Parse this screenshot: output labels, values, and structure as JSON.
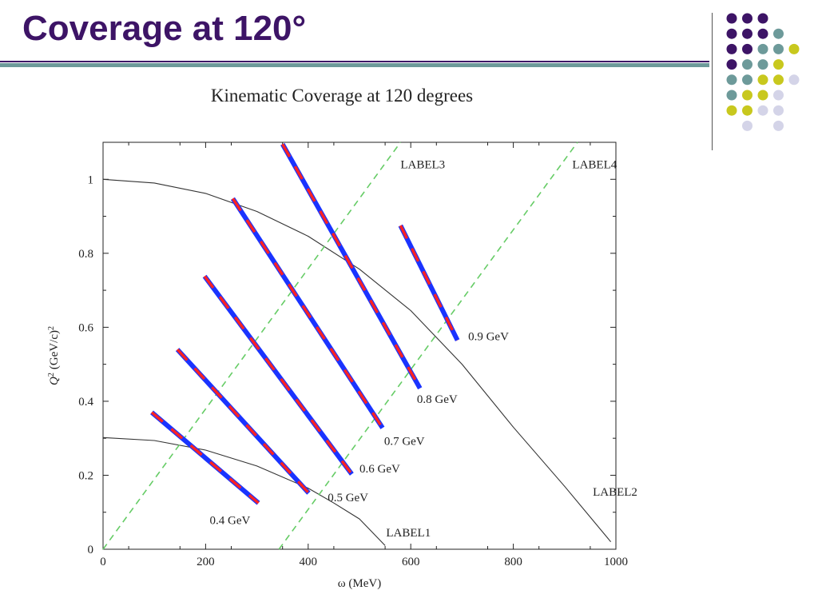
{
  "slide": {
    "title": "Coverage at 120°"
  },
  "decor": {
    "dot_colors": {
      "purple": "#3d1466",
      "teal": "#6d9a9a",
      "yellow": "#c8c81e",
      "lavender": "#d4d4e8"
    },
    "dot_grid": [
      [
        "purple",
        "purple",
        "purple",
        null,
        null
      ],
      [
        "purple",
        "purple",
        "purple",
        "teal",
        null
      ],
      [
        "purple",
        "purple",
        "teal",
        "teal",
        "yellow"
      ],
      [
        "purple",
        "teal",
        "teal",
        "yellow",
        null
      ],
      [
        "teal",
        "teal",
        "yellow",
        "yellow",
        "lavender"
      ],
      [
        "teal",
        "yellow",
        "yellow",
        "lavender",
        null
      ],
      [
        "yellow",
        "yellow",
        "lavender",
        "lavender",
        null
      ],
      [
        null,
        "lavender",
        null,
        "lavender",
        null
      ]
    ],
    "rule_colors": {
      "dark": "#3d1466",
      "bar": "#6d9a9a"
    }
  },
  "chart_data": {
    "type": "line",
    "title": "Kinematic Coverage at 120 degrees",
    "xlabel": "ω (MeV)",
    "ylabel_main": "Q",
    "ylabel_sup": "2",
    "ylabel_units": "(GeV/c)",
    "ylabel_units_sup": "2",
    "xlim": [
      0,
      1000
    ],
    "ylim": [
      0,
      1.1
    ],
    "x_ticks": [
      0,
      200,
      400,
      600,
      800,
      1000
    ],
    "y_ticks": [
      0,
      0.2,
      0.4,
      0.6,
      0.8,
      1
    ],
    "y_tick_labels": [
      "0",
      "0.2",
      "0.4",
      "0.6",
      "0.8",
      "1"
    ],
    "grid": false,
    "curves": [
      {
        "label": "LABEL1",
        "color": "#333333",
        "points": [
          [
            0,
            0.302
          ],
          [
            100,
            0.294
          ],
          [
            200,
            0.268
          ],
          [
            300,
            0.225
          ],
          [
            400,
            0.165
          ],
          [
            450,
            0.125
          ],
          [
            500,
            0.082
          ],
          [
            550,
            0.01
          ]
        ],
        "label_at": [
          552,
          0.035
        ]
      },
      {
        "label": "LABEL2",
        "color": "#333333",
        "points": [
          [
            0,
            1.0
          ],
          [
            100,
            0.99
          ],
          [
            200,
            0.962
          ],
          [
            300,
            0.913
          ],
          [
            400,
            0.846
          ],
          [
            500,
            0.757
          ],
          [
            600,
            0.645
          ],
          [
            700,
            0.5
          ],
          [
            800,
            0.33
          ],
          [
            900,
            0.17
          ],
          [
            990,
            0.02
          ]
        ],
        "label_at": [
          955,
          0.145
        ]
      },
      {
        "label": "LABEL3",
        "color": "#66cc66",
        "dashed": true,
        "points": [
          [
            0,
            0.0
          ],
          [
            580,
            1.1
          ]
        ],
        "label_at": [
          580,
          1.03
        ]
      },
      {
        "label": "LABEL4",
        "color": "#66cc66",
        "dashed": true,
        "points": [
          [
            343,
            0.0
          ],
          [
            925,
            1.1
          ]
        ],
        "label_at": [
          915,
          1.03
        ]
      }
    ],
    "band_colors": {
      "a": "#1a33ff",
      "b": "#ff2222"
    },
    "bands": [
      {
        "label": "0.4 GeV",
        "start": [
          95,
          0.37
        ],
        "end": [
          303,
          0.125
        ],
        "label_at": [
          208,
          0.068
        ]
      },
      {
        "label": "0.5 GeV",
        "start": [
          145,
          0.54
        ],
        "end": [
          401,
          0.152
        ],
        "label_at": [
          438,
          0.13
        ]
      },
      {
        "label": "0.6 GeV",
        "start": [
          198,
          0.738
        ],
        "end": [
          485,
          0.203
        ],
        "label_at": [
          500,
          0.208
        ]
      },
      {
        "label": "0.7 GeV",
        "start": [
          253,
          0.948
        ],
        "end": [
          545,
          0.328
        ],
        "label_at": [
          548,
          0.282
        ]
      },
      {
        "label": "0.8 GeV",
        "start": [
          350,
          1.095
        ],
        "end": [
          618,
          0.435
        ],
        "label_at": [
          612,
          0.395
        ]
      },
      {
        "label": "0.9 GeV",
        "start": [
          580,
          0.875
        ],
        "end": [
          691,
          0.565
        ],
        "label_at": [
          712,
          0.565
        ]
      }
    ]
  }
}
